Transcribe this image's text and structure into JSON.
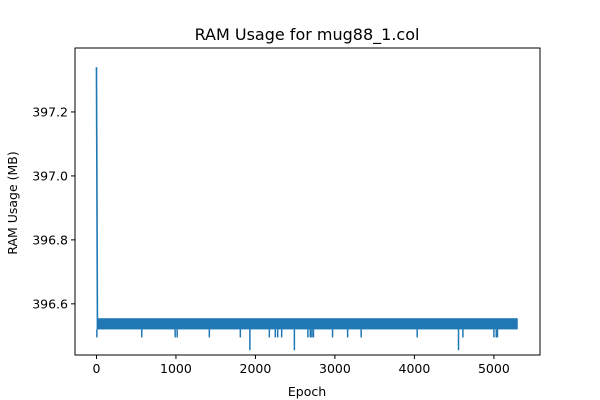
{
  "chart_data": {
    "type": "line",
    "title": "RAM Usage for mug88_1.col",
    "xlabel": "Epoch",
    "ylabel": "RAM Usage (MB)",
    "xlim": [
      -270,
      5580
    ],
    "ylim": [
      396.44,
      397.4
    ],
    "xticks": [
      0,
      1000,
      2000,
      3000,
      4000,
      5000
    ],
    "xtick_labels": [
      "0",
      "1000",
      "2000",
      "3000",
      "4000",
      "5000"
    ],
    "yticks": [
      396.6,
      396.8,
      397.0,
      397.2
    ],
    "ytick_labels": [
      "396.6",
      "396.8",
      "397.0",
      "397.2"
    ],
    "grid": false,
    "legend": false,
    "series_color": "#1f77b4",
    "series": [
      {
        "n_epochs": 5300,
        "initial_spike": {
          "x": 0,
          "y": 397.34
        },
        "band": {
          "x_start": 5,
          "x_end": 5300,
          "y_low": 396.52,
          "y_high": 396.555
        },
        "dips": [
          {
            "x": 5,
            "y": 396.495
          },
          {
            "x": 570,
            "y": 396.495
          },
          {
            "x": 990,
            "y": 396.495
          },
          {
            "x": 1015,
            "y": 396.495
          },
          {
            "x": 1420,
            "y": 396.495
          },
          {
            "x": 1810,
            "y": 396.495
          },
          {
            "x": 1930,
            "y": 396.455
          },
          {
            "x": 2175,
            "y": 396.495
          },
          {
            "x": 2250,
            "y": 396.495
          },
          {
            "x": 2280,
            "y": 396.495
          },
          {
            "x": 2330,
            "y": 396.495
          },
          {
            "x": 2490,
            "y": 396.455
          },
          {
            "x": 2660,
            "y": 396.495
          },
          {
            "x": 2690,
            "y": 396.495
          },
          {
            "x": 2710,
            "y": 396.495
          },
          {
            "x": 2730,
            "y": 396.495
          },
          {
            "x": 2970,
            "y": 396.495
          },
          {
            "x": 3160,
            "y": 396.495
          },
          {
            "x": 3330,
            "y": 396.495
          },
          {
            "x": 4035,
            "y": 396.495
          },
          {
            "x": 4555,
            "y": 396.455
          },
          {
            "x": 4610,
            "y": 396.495
          },
          {
            "x": 5000,
            "y": 396.495
          },
          {
            "x": 5030,
            "y": 396.495
          },
          {
            "x": 5045,
            "y": 396.495
          }
        ]
      }
    ]
  }
}
